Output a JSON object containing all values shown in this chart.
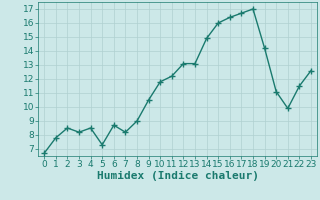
{
  "x": [
    0,
    1,
    2,
    3,
    4,
    5,
    6,
    7,
    8,
    9,
    10,
    11,
    12,
    13,
    14,
    15,
    16,
    17,
    18,
    19,
    20,
    21,
    22,
    23
  ],
  "y": [
    6.7,
    7.8,
    8.5,
    8.2,
    8.5,
    7.3,
    8.7,
    8.2,
    9.0,
    10.5,
    11.8,
    12.2,
    13.1,
    13.1,
    14.9,
    16.0,
    16.4,
    16.7,
    17.0,
    14.2,
    11.1,
    9.9,
    11.5,
    12.6
  ],
  "line_color": "#1a7a6e",
  "marker": "+",
  "marker_size": 4,
  "marker_linewidth": 1.0,
  "line_width": 1.0,
  "bg_color": "#cce8e8",
  "grid_color": "#b0d0d0",
  "xlabel": "Humidex (Indice chaleur)",
  "ylabel": "",
  "xlim": [
    -0.5,
    23.5
  ],
  "ylim": [
    6.5,
    17.5
  ],
  "yticks": [
    7,
    8,
    9,
    10,
    11,
    12,
    13,
    14,
    15,
    16,
    17
  ],
  "xticks": [
    0,
    1,
    2,
    3,
    4,
    5,
    6,
    7,
    8,
    9,
    10,
    11,
    12,
    13,
    14,
    15,
    16,
    17,
    18,
    19,
    20,
    21,
    22,
    23
  ],
  "tick_fontsize": 6.5,
  "xlabel_fontsize": 8,
  "spine_color": "#1a7a6e",
  "tick_color": "#1a7a6e",
  "label_color": "#1a7a6e"
}
